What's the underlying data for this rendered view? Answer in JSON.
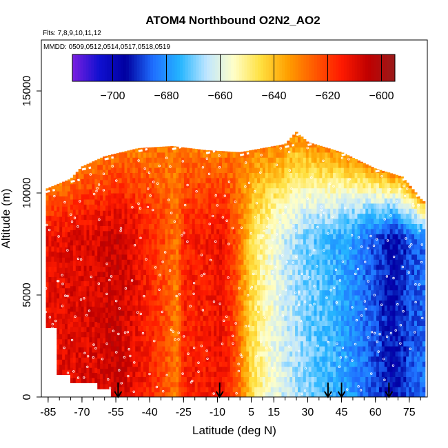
{
  "chart_data": {
    "type": "heatmap",
    "title": "ATOM4 Northbound O2N2_AO2",
    "subtitle_flights": "Flts: 7,8,9,10,11,12",
    "subtitle_dates": "MMDD: 0509,0512,0514,0517,0518,0519",
    "xlabel": "Latitude (deg N)",
    "ylabel": "Altitude (m)",
    "xlim": [
      -88,
      83
    ],
    "ylim": [
      0,
      17500
    ],
    "x_ticks": [
      -85,
      -70,
      -55,
      -40,
      -25,
      -10,
      5,
      15,
      30,
      45,
      60,
      75
    ],
    "y_ticks": [
      0,
      5000,
      10000,
      15000
    ],
    "colorbar": {
      "min": -715,
      "max": -595,
      "ticks": [
        -700,
        -680,
        -660,
        -640,
        -620,
        -600
      ],
      "colors": [
        "#7a1fe0",
        "#1010d0",
        "#0000a0",
        "#1f6fff",
        "#24b4ff",
        "#bfe6ff",
        "#ffffc8",
        "#ffe040",
        "#ffa000",
        "#ff5a00",
        "#ff1a00",
        "#c00000",
        "#9a1a1a"
      ]
    },
    "arrows_latitude": [
      -54,
      -9,
      39,
      45,
      66
    ],
    "points_marker": "white open circles along flight tracks",
    "profile_value": [
      {
        "lat": -86,
        "value": -612
      },
      {
        "lat": -75,
        "value": -610
      },
      {
        "lat": -65,
        "value": -609
      },
      {
        "lat": -55,
        "value": -606
      },
      {
        "lat": -45,
        "value": -612
      },
      {
        "lat": -35,
        "value": -620
      },
      {
        "lat": -28,
        "value": -630
      },
      {
        "lat": -25,
        "value": -616
      },
      {
        "lat": -15,
        "value": -614
      },
      {
        "lat": -8,
        "value": -612
      },
      {
        "lat": -2,
        "value": -622
      },
      {
        "lat": 5,
        "value": -645
      },
      {
        "lat": 12,
        "value": -655
      },
      {
        "lat": 20,
        "value": -663
      },
      {
        "lat": 30,
        "value": -670
      },
      {
        "lat": 40,
        "value": -674
      },
      {
        "lat": 50,
        "value": -680
      },
      {
        "lat": 60,
        "value": -688
      },
      {
        "lat": 68,
        "value": -695
      },
      {
        "lat": 75,
        "value": -688
      },
      {
        "lat": 81,
        "value": -685
      }
    ],
    "upper_value": -630,
    "top_altitude": [
      {
        "lat": -86,
        "alt": 10200
      },
      {
        "lat": -75,
        "alt": 10700
      },
      {
        "lat": -70,
        "alt": 11300
      },
      {
        "lat": -60,
        "alt": 11800
      },
      {
        "lat": -45,
        "alt": 12200
      },
      {
        "lat": -30,
        "alt": 12300
      },
      {
        "lat": -15,
        "alt": 12100
      },
      {
        "lat": 0,
        "alt": 12000
      },
      {
        "lat": 20,
        "alt": 12400
      },
      {
        "lat": 25,
        "alt": 13000
      },
      {
        "lat": 30,
        "alt": 12500
      },
      {
        "lat": 45,
        "alt": 12000
      },
      {
        "lat": 60,
        "alt": 11200
      },
      {
        "lat": 72,
        "alt": 10800
      },
      {
        "lat": 78,
        "alt": 10000
      },
      {
        "lat": 81,
        "alt": 9600
      }
    ]
  }
}
